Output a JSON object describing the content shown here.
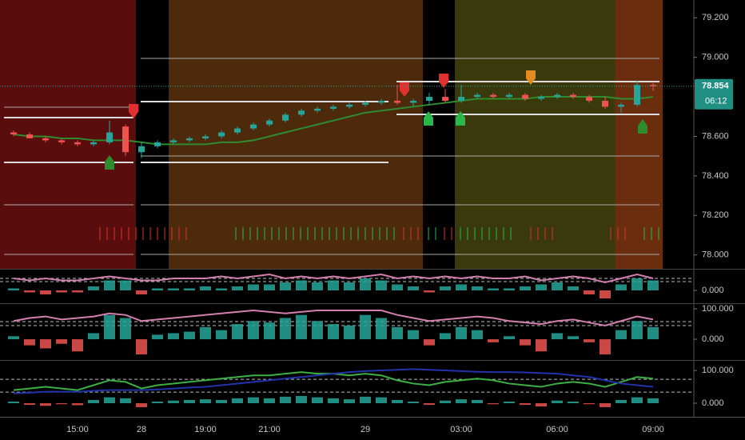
{
  "chart_data": [
    {
      "type": "candlestick",
      "categories": [
        null,
        null,
        null,
        null,
        "15:00",
        null,
        null,
        null,
        "28",
        null,
        null,
        null,
        "19:00",
        null,
        null,
        null,
        "21:00",
        null,
        null,
        null,
        null,
        null,
        "29",
        null,
        null,
        null,
        null,
        null,
        "03:00",
        null,
        null,
        null,
        null,
        null,
        "06:00",
        null,
        null,
        null,
        null,
        null,
        "09:00"
      ],
      "open": [
        78.62,
        78.61,
        78.59,
        78.58,
        78.57,
        78.56,
        78.57,
        78.65,
        78.52,
        78.55,
        78.57,
        78.58,
        78.59,
        78.6,
        78.62,
        78.64,
        78.66,
        78.68,
        78.71,
        78.73,
        78.74,
        78.75,
        78.76,
        78.77,
        78.78,
        78.77,
        78.78,
        78.8,
        78.78,
        78.8,
        78.81,
        78.8,
        78.81,
        78.79,
        78.8,
        78.81,
        78.8,
        78.78,
        78.75,
        78.76,
        78.86
      ],
      "high": [
        78.63,
        78.62,
        78.6,
        78.59,
        78.58,
        78.58,
        78.68,
        78.66,
        78.57,
        78.58,
        78.59,
        78.6,
        78.61,
        78.63,
        78.65,
        78.67,
        78.69,
        78.72,
        78.74,
        78.75,
        78.76,
        78.77,
        78.78,
        78.79,
        78.86,
        78.79,
        78.82,
        78.84,
        78.86,
        78.82,
        78.82,
        78.82,
        78.82,
        78.81,
        78.82,
        78.82,
        78.81,
        78.8,
        78.77,
        78.88,
        78.87
      ],
      "low": [
        78.6,
        78.59,
        78.57,
        78.56,
        78.55,
        78.55,
        78.56,
        78.5,
        78.49,
        78.54,
        78.56,
        78.57,
        78.58,
        78.59,
        78.61,
        78.63,
        78.65,
        78.67,
        78.7,
        78.72,
        78.73,
        78.74,
        78.75,
        78.76,
        78.76,
        78.75,
        78.76,
        78.77,
        78.77,
        78.79,
        78.79,
        78.79,
        78.78,
        78.78,
        78.79,
        78.79,
        78.77,
        78.74,
        78.72,
        78.75,
        78.83
      ],
      "close": [
        78.61,
        78.59,
        78.58,
        78.57,
        78.56,
        78.57,
        78.62,
        78.52,
        78.55,
        78.57,
        78.58,
        78.59,
        78.6,
        78.62,
        78.64,
        78.66,
        78.68,
        78.71,
        78.73,
        78.74,
        78.75,
        78.76,
        78.77,
        78.78,
        78.77,
        78.78,
        78.8,
        78.78,
        78.8,
        78.81,
        78.8,
        78.81,
        78.79,
        78.8,
        78.81,
        78.8,
        78.78,
        78.75,
        78.76,
        78.86,
        78.854
      ],
      "up_color": "#26a69a",
      "down_color": "#ef5350",
      "lines": [
        {
          "color": "#2e8b2e",
          "values": [
            78.61,
            78.6,
            78.6,
            78.59,
            78.59,
            78.58,
            78.58,
            78.58,
            78.57,
            78.56,
            78.56,
            78.56,
            78.56,
            78.57,
            78.57,
            78.58,
            78.6,
            78.62,
            78.64,
            78.66,
            78.68,
            78.7,
            78.72,
            78.73,
            78.74,
            78.75,
            78.76,
            78.77,
            78.78,
            78.79,
            78.79,
            78.79,
            78.79,
            78.8,
            78.8,
            78.8,
            78.8,
            78.8,
            78.79,
            78.79,
            78.8
          ]
        }
      ],
      "ylim": [
        77.93,
        79.29
      ],
      "yticks": [
        {
          "value": 79.2,
          "label": "79.200"
        },
        {
          "value": 79.0,
          "label": "79.000"
        },
        {
          "value": 78.6,
          "label": "78.600"
        },
        {
          "value": 78.4,
          "label": "78.400"
        },
        {
          "value": 78.2,
          "label": "78.200"
        },
        {
          "value": 78.0,
          "label": "78.000"
        }
      ],
      "last_price": 78.854,
      "countdown": "06:12"
    },
    {
      "type": "bar",
      "values": [
        0.1,
        -0.1,
        -0.2,
        -0.1,
        -0.1,
        0.2,
        0.5,
        0.5,
        -0.2,
        0.1,
        0.1,
        0.1,
        0.2,
        0.1,
        0.2,
        0.3,
        0.3,
        0.4,
        0.5,
        0.4,
        0.5,
        0.4,
        0.6,
        0.5,
        0.3,
        0.2,
        -0.1,
        0.2,
        0.3,
        0.2,
        0.1,
        0.1,
        0.2,
        0.3,
        0.4,
        0.2,
        -0.2,
        -0.4,
        0.3,
        0.6,
        0.5
      ],
      "up_color": "#26a69a",
      "down_color": "#ef5350",
      "lines": [
        {
          "color": "#d47fb0",
          "values": [
            0.6,
            0.5,
            0.6,
            0.5,
            0.5,
            0.6,
            0.7,
            0.6,
            0.5,
            0.5,
            0.6,
            0.6,
            0.6,
            0.7,
            0.6,
            0.7,
            0.8,
            0.6,
            0.7,
            0.6,
            0.7,
            0.6,
            0.7,
            0.8,
            0.6,
            0.7,
            0.6,
            0.7,
            0.6,
            0.7,
            0.6,
            0.6,
            0.7,
            0.5,
            0.6,
            0.7,
            0.6,
            0.4,
            0.6,
            0.8,
            0.6
          ]
        }
      ],
      "levels": [
        0.6,
        0.44
      ],
      "ylim": [
        -0.6,
        1.0
      ],
      "yticks": [
        {
          "value": 0,
          "label": "0.000"
        }
      ]
    },
    {
      "type": "bar",
      "values": [
        10,
        -20,
        -30,
        -15,
        -40,
        20,
        80,
        70,
        -50,
        15,
        20,
        25,
        40,
        30,
        50,
        60,
        55,
        70,
        80,
        60,
        50,
        45,
        80,
        70,
        40,
        30,
        -20,
        20,
        40,
        30,
        -10,
        10,
        -20,
        -40,
        20,
        10,
        -10,
        -50,
        30,
        60,
        40
      ],
      "up_color": "#26a69a",
      "down_color": "#ef5350",
      "lines": [
        {
          "color": "#d47fb0",
          "values": [
            60,
            70,
            75,
            65,
            70,
            75,
            85,
            80,
            60,
            65,
            70,
            75,
            80,
            85,
            90,
            95,
            90,
            85,
            90,
            95,
            95,
            95,
            95,
            95,
            80,
            70,
            60,
            65,
            70,
            75,
            70,
            60,
            55,
            50,
            60,
            65,
            55,
            45,
            60,
            75,
            65
          ]
        }
      ],
      "levels": [
        58,
        45
      ],
      "ylim": [
        -63,
        116
      ],
      "yticks": [
        {
          "value": 100,
          "label": "100.000"
        },
        {
          "value": 0,
          "label": "0.000"
        }
      ]
    },
    {
      "type": "bar",
      "values": [
        5,
        -5,
        -8,
        -3,
        -6,
        10,
        18,
        15,
        -12,
        5,
        8,
        10,
        12,
        10,
        15,
        18,
        15,
        20,
        22,
        18,
        15,
        12,
        20,
        18,
        10,
        5,
        -5,
        8,
        12,
        10,
        -3,
        5,
        -5,
        -10,
        8,
        5,
        -3,
        -12,
        10,
        18,
        15
      ],
      "up_color": "#26a69a",
      "down_color": "#ef5350",
      "lines": [
        {
          "color": "#3cb043",
          "values": [
            40,
            45,
            50,
            45,
            40,
            55,
            70,
            65,
            45,
            55,
            60,
            65,
            70,
            75,
            80,
            85,
            85,
            90,
            95,
            90,
            90,
            85,
            90,
            85,
            70,
            60,
            55,
            65,
            70,
            75,
            70,
            60,
            55,
            50,
            60,
            65,
            60,
            50,
            65,
            80,
            75
          ]
        },
        {
          "color": "#2233aa",
          "values": [
            30,
            32,
            35,
            35,
            35,
            38,
            40,
            40,
            40,
            42,
            45,
            48,
            50,
            55,
            60,
            65,
            70,
            75,
            80,
            85,
            90,
            95,
            98,
            100,
            102,
            104,
            102,
            100,
            98,
            96,
            95,
            95,
            94,
            92,
            90,
            85,
            80,
            70,
            60,
            55,
            50
          ]
        }
      ],
      "levels": [
        73,
        34
      ],
      "ylim": [
        -39,
        127
      ],
      "yticks": [
        {
          "value": 100,
          "label": "100.000"
        },
        {
          "value": 0,
          "label": "0.000"
        }
      ]
    }
  ]
}
